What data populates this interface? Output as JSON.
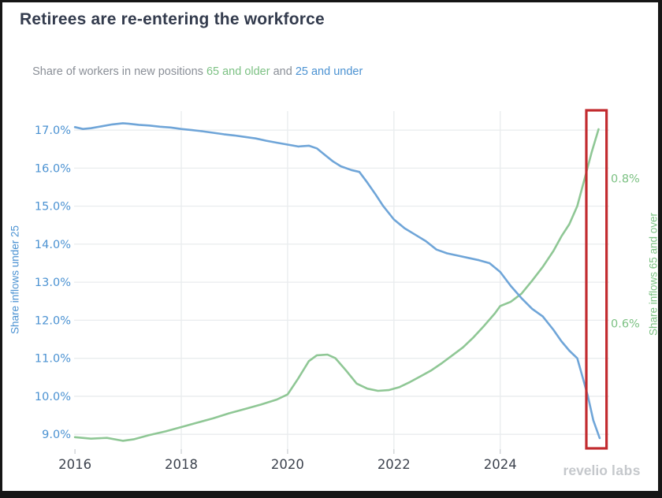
{
  "header": {
    "title": "Retirees are re-entering the workforce",
    "subtitle": {
      "prefix": "Share of workers in new positions ",
      "highlight_older": "65 and older",
      "connector": " and ",
      "highlight_younger": "25 and under"
    }
  },
  "watermark": {
    "brand": "revelio",
    "suffix": "labs"
  },
  "colors": {
    "title": "#333b4d",
    "subtitle": "#8a8f97",
    "under25_line": "#6fa5d8",
    "under25_text": "#4b92d2",
    "over65_line": "#8fc795",
    "over65_text": "#7cc183",
    "x_label": "#3d434e",
    "grid": "#e9ecee",
    "tick_mark": "#c8ccd0",
    "highlight_box": "#c22b2f",
    "watermark": "#c5c8cc"
  },
  "chart_data": {
    "type": "line",
    "title": "Retirees are re-entering the workforce",
    "subtitle": "Share of workers in new positions 65 and older and 25 and under",
    "xlabel": "",
    "x_ticks": [
      "2016",
      "2018",
      "2020",
      "2022",
      "2024"
    ],
    "x_tick_values": [
      2016,
      2018,
      2020,
      2022,
      2024
    ],
    "x_range": [
      2015.85,
      2026.05
    ],
    "grid": true,
    "legend": "inline-in-subtitle",
    "left_axis": {
      "label": "Share inflows under 25",
      "tick_labels": [
        "17.0%",
        "16.0%",
        "15.0%",
        "14.0%",
        "13.0%",
        "12.0%",
        "11.0%",
        "10.0%",
        "9.0%"
      ],
      "tick_values": [
        17,
        16,
        15,
        14,
        13,
        12,
        11,
        10,
        9
      ],
      "range": [
        8.61,
        17.5
      ]
    },
    "right_axis": {
      "label": "Share inflows 65 and over",
      "tick_labels": [
        "0.8%",
        "0.6%"
      ],
      "tick_values": [
        0.8,
        0.6
      ],
      "range": [
        0.4265,
        0.893
      ]
    },
    "series": [
      {
        "name": "25 and under",
        "axis": "left",
        "color": "#6fa5d8",
        "points": [
          [
            2016.0,
            17.08
          ],
          [
            2016.15,
            17.03
          ],
          [
            2016.3,
            17.05
          ],
          [
            2016.5,
            17.1
          ],
          [
            2016.7,
            17.15
          ],
          [
            2016.9,
            17.18
          ],
          [
            2017.0,
            17.17
          ],
          [
            2017.2,
            17.14
          ],
          [
            2017.4,
            17.12
          ],
          [
            2017.6,
            17.09
          ],
          [
            2017.8,
            17.07
          ],
          [
            2018.0,
            17.03
          ],
          [
            2018.2,
            17.0
          ],
          [
            2018.4,
            16.97
          ],
          [
            2018.6,
            16.93
          ],
          [
            2018.8,
            16.89
          ],
          [
            2019.0,
            16.86
          ],
          [
            2019.2,
            16.82
          ],
          [
            2019.4,
            16.78
          ],
          [
            2019.6,
            16.72
          ],
          [
            2019.8,
            16.67
          ],
          [
            2020.0,
            16.62
          ],
          [
            2020.2,
            16.57
          ],
          [
            2020.4,
            16.59
          ],
          [
            2020.55,
            16.52
          ],
          [
            2020.7,
            16.35
          ],
          [
            2020.85,
            16.18
          ],
          [
            2021.0,
            16.05
          ],
          [
            2021.2,
            15.95
          ],
          [
            2021.35,
            15.9
          ],
          [
            2021.5,
            15.62
          ],
          [
            2021.65,
            15.32
          ],
          [
            2021.8,
            15.0
          ],
          [
            2022.0,
            14.65
          ],
          [
            2022.2,
            14.42
          ],
          [
            2022.4,
            14.25
          ],
          [
            2022.6,
            14.08
          ],
          [
            2022.8,
            13.86
          ],
          [
            2023.0,
            13.76
          ],
          [
            2023.2,
            13.7
          ],
          [
            2023.4,
            13.64
          ],
          [
            2023.6,
            13.58
          ],
          [
            2023.8,
            13.5
          ],
          [
            2024.0,
            13.27
          ],
          [
            2024.2,
            12.9
          ],
          [
            2024.4,
            12.58
          ],
          [
            2024.6,
            12.3
          ],
          [
            2024.8,
            12.1
          ],
          [
            2025.0,
            11.75
          ],
          [
            2025.15,
            11.45
          ],
          [
            2025.3,
            11.2
          ],
          [
            2025.45,
            11.0
          ],
          [
            2025.55,
            10.5
          ],
          [
            2025.65,
            10.0
          ],
          [
            2025.75,
            9.37
          ],
          [
            2025.87,
            8.9
          ]
        ]
      },
      {
        "name": "65 and older",
        "axis": "right",
        "color": "#8fc795",
        "points": [
          [
            2016.0,
            0.443
          ],
          [
            2016.3,
            0.441
          ],
          [
            2016.6,
            0.442
          ],
          [
            2016.9,
            0.438
          ],
          [
            2017.1,
            0.44
          ],
          [
            2017.4,
            0.446
          ],
          [
            2017.7,
            0.451
          ],
          [
            2018.0,
            0.457
          ],
          [
            2018.3,
            0.463
          ],
          [
            2018.6,
            0.469
          ],
          [
            2018.9,
            0.476
          ],
          [
            2019.2,
            0.482
          ],
          [
            2019.5,
            0.488
          ],
          [
            2019.8,
            0.495
          ],
          [
            2020.0,
            0.502
          ],
          [
            2020.2,
            0.524
          ],
          [
            2020.4,
            0.548
          ],
          [
            2020.55,
            0.556
          ],
          [
            2020.75,
            0.557
          ],
          [
            2020.9,
            0.552
          ],
          [
            2021.1,
            0.535
          ],
          [
            2021.3,
            0.517
          ],
          [
            2021.5,
            0.51
          ],
          [
            2021.7,
            0.507
          ],
          [
            2021.9,
            0.508
          ],
          [
            2022.1,
            0.512
          ],
          [
            2022.3,
            0.519
          ],
          [
            2022.5,
            0.527
          ],
          [
            2022.7,
            0.535
          ],
          [
            2022.9,
            0.545
          ],
          [
            2023.1,
            0.556
          ],
          [
            2023.3,
            0.567
          ],
          [
            2023.5,
            0.581
          ],
          [
            2023.7,
            0.597
          ],
          [
            2023.9,
            0.614
          ],
          [
            2024.0,
            0.624
          ],
          [
            2024.2,
            0.63
          ],
          [
            2024.4,
            0.641
          ],
          [
            2024.6,
            0.659
          ],
          [
            2024.8,
            0.678
          ],
          [
            2025.0,
            0.7
          ],
          [
            2025.15,
            0.72
          ],
          [
            2025.3,
            0.737
          ],
          [
            2025.45,
            0.762
          ],
          [
            2025.6,
            0.803
          ],
          [
            2025.72,
            0.836
          ],
          [
            2025.85,
            0.868
          ]
        ]
      }
    ],
    "highlight_box": {
      "x_start": 2025.62,
      "x_end": 2026.0,
      "color": "#c22b2f"
    }
  }
}
